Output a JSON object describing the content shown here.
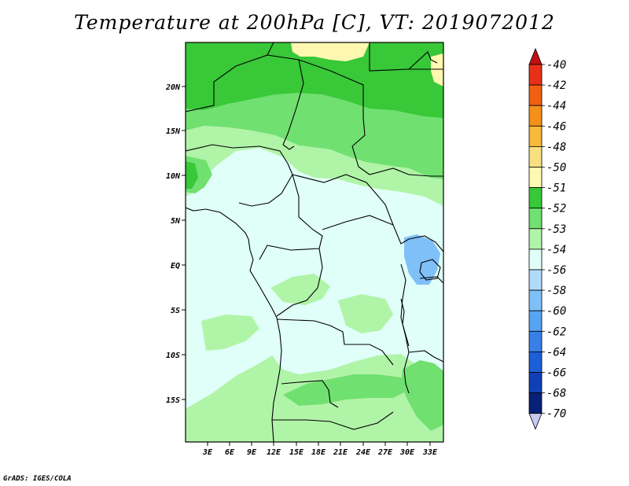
{
  "title": "Temperature at 200hPa [C], VT: 2019072012",
  "credit": "GrADS: IGES/COLA",
  "lat_ticks": [
    "20N",
    "15N",
    "10N",
    "5N",
    "EQ",
    "5S",
    "10S",
    "15S"
  ],
  "lon_ticks": [
    "3E",
    "6E",
    "9E",
    "12E",
    "15E",
    "18E",
    "21E",
    "24E",
    "27E",
    "30E",
    "33E"
  ],
  "colorbar": {
    "levels": [
      "-40",
      "-42",
      "-44",
      "-46",
      "-48",
      "-50",
      "-51",
      "-52",
      "-53",
      "-54",
      "-56",
      "-58",
      "-60",
      "-62",
      "-64",
      "-66",
      "-68",
      "-70"
    ],
    "colors": [
      "#c01010",
      "#e83018",
      "#f06010",
      "#f59018",
      "#f8b838",
      "#f8e080",
      "#fff8b0",
      "#38c838",
      "#70e070",
      "#b0f4a8",
      "#e0fff8",
      "#b0dcfc",
      "#80c0f8",
      "#58a4f4",
      "#3880e8",
      "#1c60d8",
      "#1040b8",
      "#082078",
      "#c8c8f0"
    ]
  },
  "map_colors": {
    "c_m52": "#38c838",
    "c_m53": "#70e070",
    "c_m54": "#b0f4a8",
    "c_m56": "#e0fff8",
    "c_m58": "#80c0f8",
    "c_m51": "#fff8b0"
  }
}
